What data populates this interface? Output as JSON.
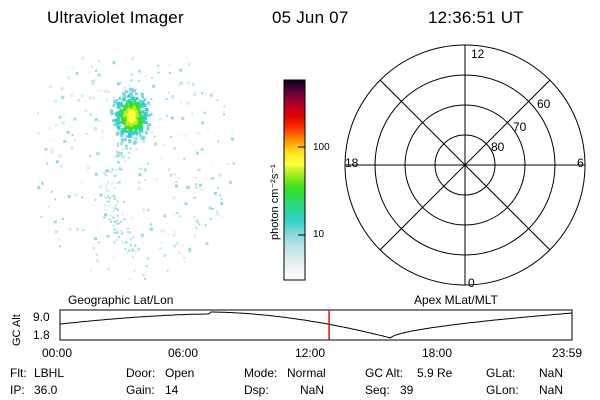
{
  "header": {
    "title": "Ultraviolet Imager",
    "date": "05 Jun 07",
    "time": "12:36:51 UT"
  },
  "colorbar": {
    "label": "photon cm⁻²s⁻¹",
    "tick_100": "100",
    "tick_10": "10"
  },
  "polar": {
    "mlt_labels": {
      "top": "12",
      "left": "18",
      "right": "6",
      "bottom": "0"
    },
    "lat_labels": {
      "lat60": "60",
      "lat70": "70",
      "lat80": "80"
    }
  },
  "altitude_plot": {
    "y_axis_label": "GC Alt",
    "y_ticks": [
      "9.0",
      "1.8"
    ],
    "left_caption": "Geographic Lat/Lon",
    "right_caption": "Apex MLat/MLT",
    "x_ticks": [
      "00:00",
      "06:00",
      "12:00",
      "18:00",
      "23:59"
    ],
    "current_marker_color": "#e01010"
  },
  "status": {
    "flt_label": "Flt:",
    "flt_value": "LBHL",
    "ip_label": "IP:",
    "ip_value": "36.0",
    "door_label": "Door:",
    "door_value": "Open",
    "gain_label": "Gain:",
    "gain_value": "14",
    "mode_label": "Mode:",
    "mode_value": "Normal",
    "dsp_label": "Dsp:",
    "dsp_value": "NaN",
    "gcalt_label": "GC Alt:",
    "gcalt_value": "5.9 Re",
    "seq_label": "Seq:",
    "seq_value": "39",
    "glat_label": "GLat:",
    "glat_value": "NaN",
    "glon_label": "GLon:",
    "glon_value": "NaN"
  }
}
